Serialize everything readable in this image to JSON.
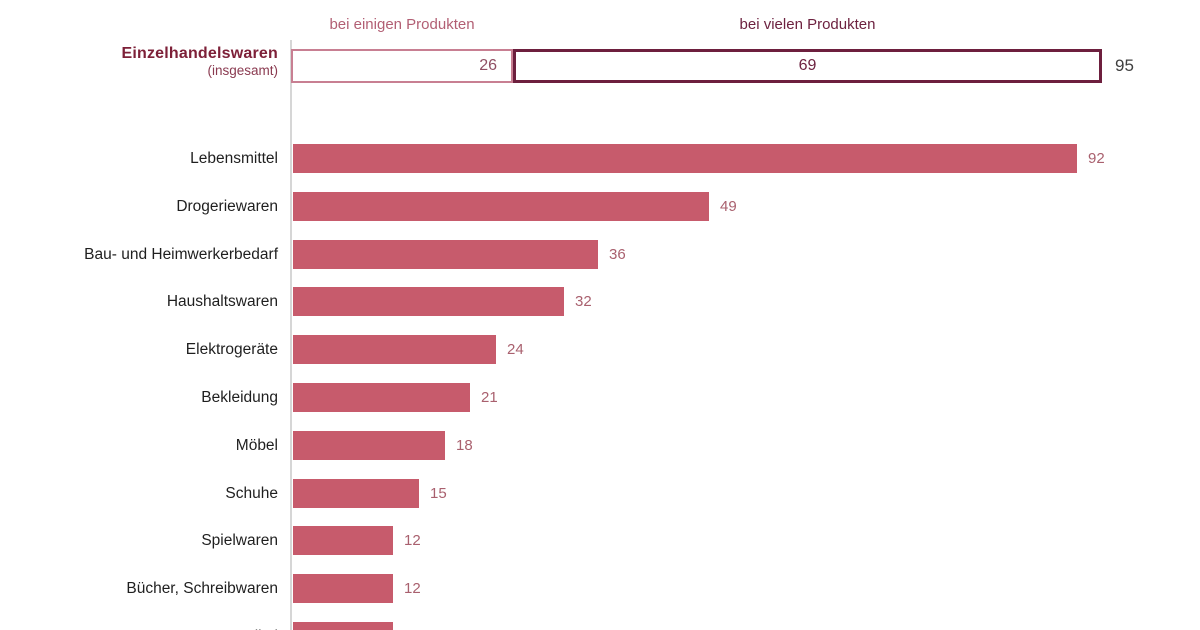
{
  "colors": {
    "bar_fill": "#c75b6c",
    "value_label": "#a9606e",
    "category_label": "#1f1f1f",
    "segment1_border": "#c87f92",
    "segment1_text": "#8f4f63",
    "segment2_border": "#6d1f3e",
    "segment2_text": "#6d2240",
    "header_some": "#b25f74",
    "header_many": "#6d2240",
    "total_value_text": "#3f3f3f",
    "total_label_text": "#7d2038",
    "total_sublabel_text": "#8a3a50",
    "axis_line": "#d6d6d6"
  },
  "summary": {
    "label": "Einzelhandelswaren",
    "sublabel": "(insgesamt)",
    "segments": [
      {
        "header": "bei einigen Produkten",
        "value": 26,
        "value_label": "26"
      },
      {
        "header": "bei vielen Produkten",
        "value": 69,
        "value_label": "69"
      }
    ],
    "total": 95,
    "total_label": "95"
  },
  "chart_data": {
    "type": "bar",
    "orientation": "horizontal",
    "value_axis_range": [
      0,
      95
    ],
    "grid": false,
    "legend": false,
    "summary_row": {
      "category": "Einzelhandelswaren (insgesamt)",
      "series": [
        {
          "name": "bei einigen Produkten",
          "value": 26
        },
        {
          "name": "bei vielen Produkten",
          "value": 69
        }
      ],
      "total": 95
    },
    "categories": [
      "Lebensmittel",
      "Drogeriewaren",
      "Bau- und Heimwerkerbedarf",
      "Haushaltswaren",
      "Elektrogeräte",
      "Bekleidung",
      "Möbel",
      "Schuhe",
      "Spielwaren",
      "Bücher, Schreibwaren",
      "Sportartikel"
    ],
    "values": [
      92,
      49,
      36,
      32,
      24,
      21,
      18,
      15,
      12,
      12,
      12
    ],
    "rows": [
      {
        "label": "Lebensmittel",
        "value": 92,
        "value_label": "92"
      },
      {
        "label": "Drogeriewaren",
        "value": 49,
        "value_label": "49"
      },
      {
        "label": "Bau- und Heimwerkerbedarf",
        "value": 36,
        "value_label": "36"
      },
      {
        "label": "Haushaltswaren",
        "value": 32,
        "value_label": "32"
      },
      {
        "label": "Elektrogeräte",
        "value": 24,
        "value_label": "24"
      },
      {
        "label": "Bekleidung",
        "value": 21,
        "value_label": "21"
      },
      {
        "label": "Möbel",
        "value": 18,
        "value_label": "18"
      },
      {
        "label": "Schuhe",
        "value": 15,
        "value_label": "15"
      },
      {
        "label": "Spielwaren",
        "value": 12,
        "value_label": "12"
      },
      {
        "label": "Bücher, Schreibwaren",
        "value": 12,
        "value_label": "12"
      },
      {
        "label": "Sportartikel",
        "value": 12,
        "value_label": "",
        "clipped": true
      }
    ]
  }
}
